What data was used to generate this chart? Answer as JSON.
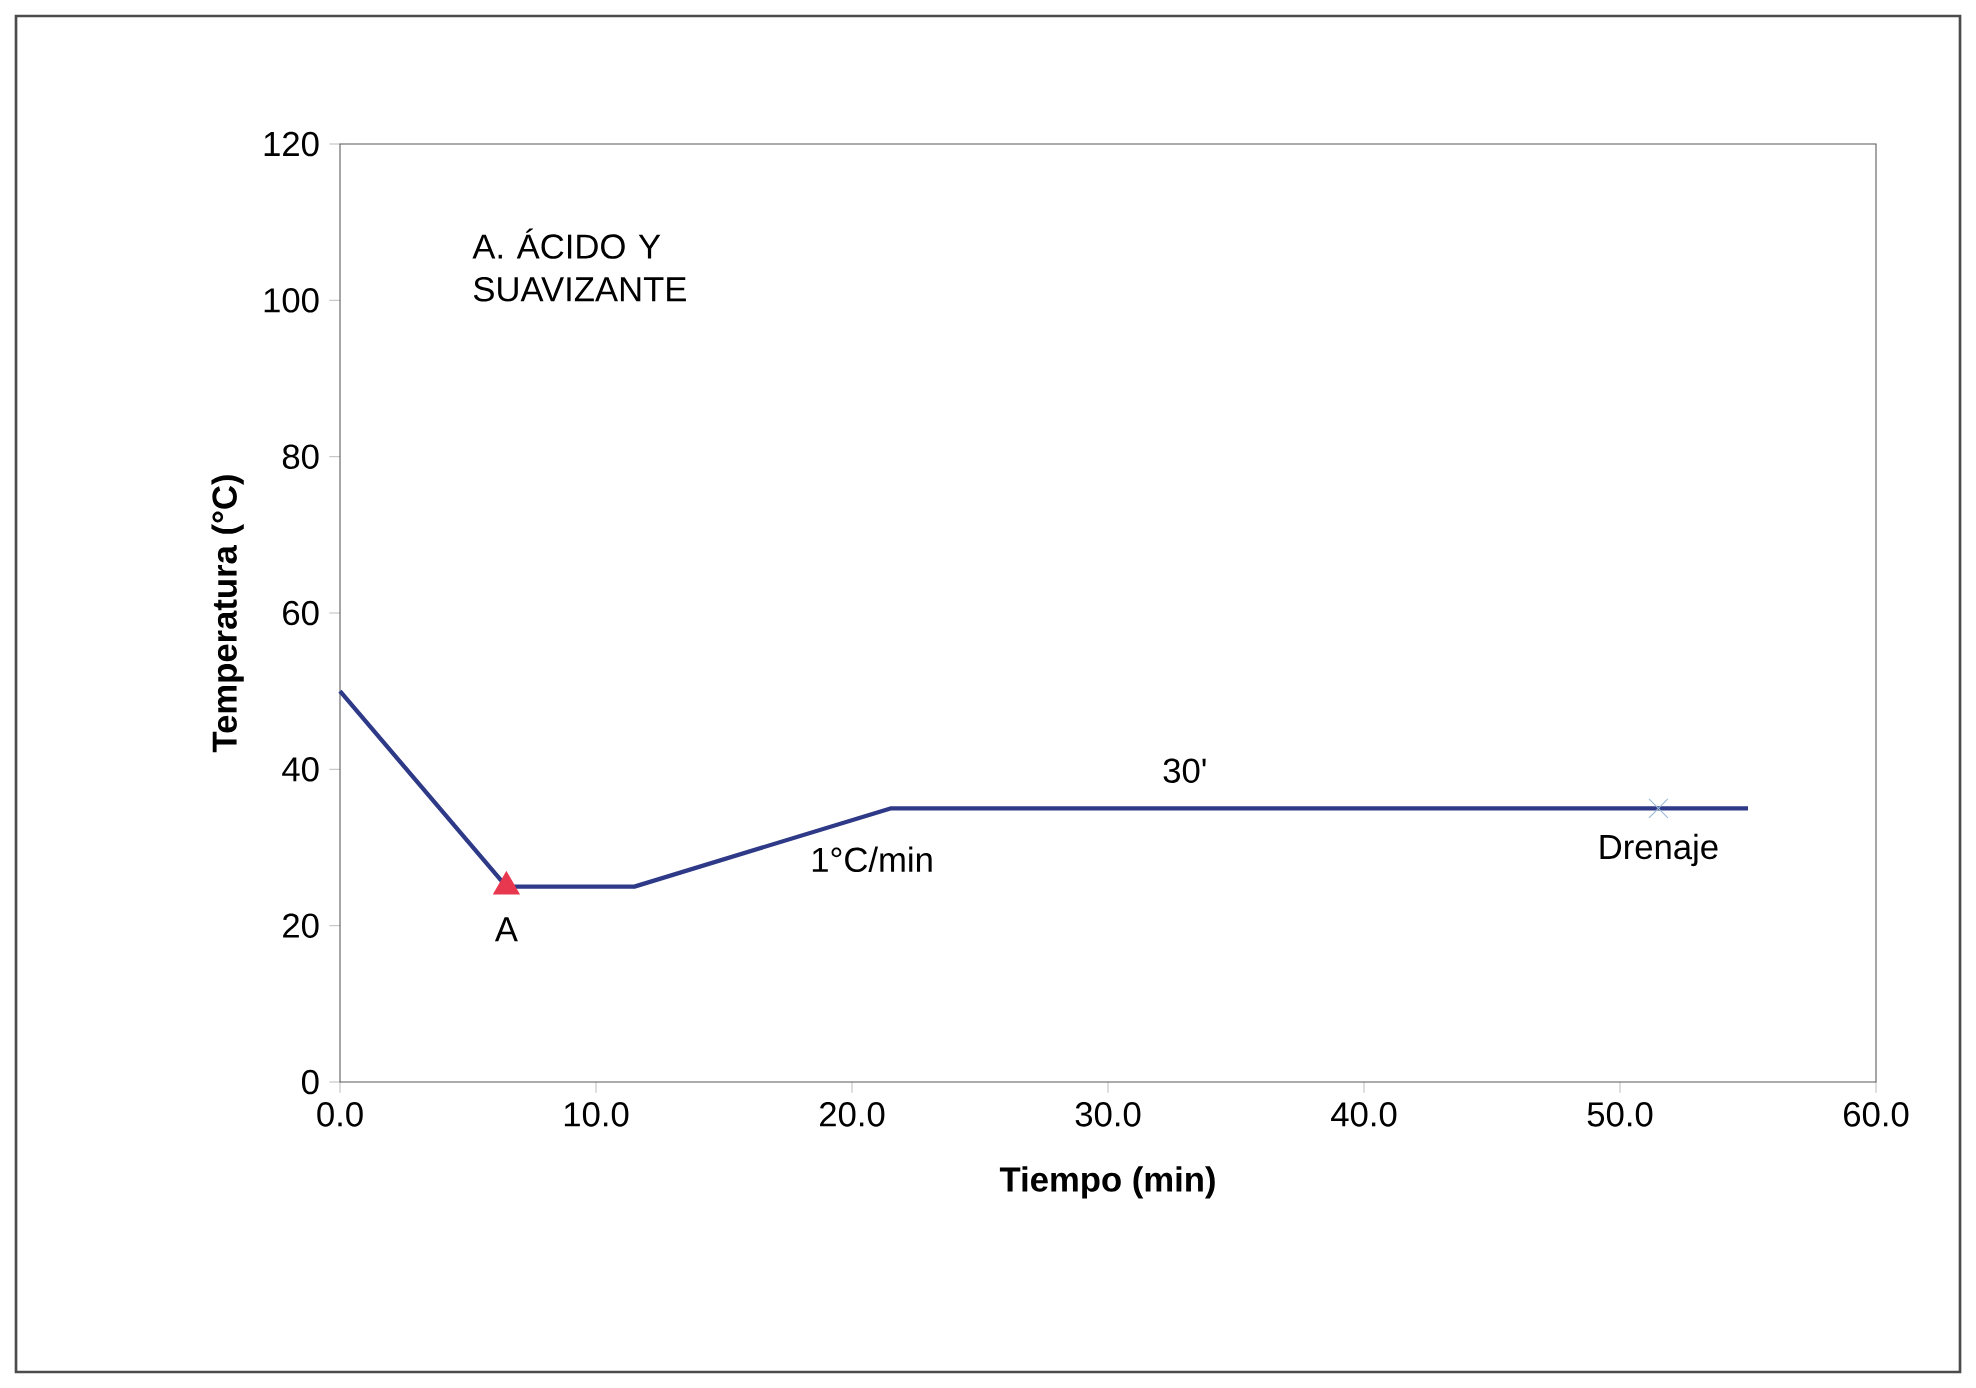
{
  "chart_data": {
    "type": "line",
    "xlabel": "Tiempo (min)",
    "ylabel": "Temperatura (°C)",
    "annotations": [
      "A. ÁCIDO Y SUAVIZANTE",
      {
        "text": "A",
        "x": 6.5,
        "y": 25
      },
      {
        "text": "1°C/min",
        "x": 18,
        "y": 32
      },
      {
        "text": "30'",
        "x": 33,
        "y": 35
      },
      {
        "text": "Drenaje",
        "x": 51.5,
        "y": 35
      }
    ],
    "series": [
      {
        "color": "#2e3a87",
        "marker": "none",
        "x": [
          0,
          6.5,
          11.5,
          21.5,
          55
        ],
        "values": [
          50,
          25,
          25,
          35,
          35
        ]
      },
      {
        "type": "scatter",
        "color": "#e8384f",
        "marker": "triangle",
        "x": [
          6.5
        ],
        "values": [
          25
        ]
      },
      {
        "type": "scatter",
        "color": "#9ab8d8",
        "marker": "cross",
        "x": [
          51.5
        ],
        "values": [
          35
        ]
      }
    ],
    "xlim": [
      0,
      60
    ],
    "ylim": [
      0,
      120
    ],
    "xticks": [
      {
        "value": 0,
        "label": "0.0"
      },
      {
        "value": 10,
        "label": "10.0"
      },
      {
        "value": 20,
        "label": "20.0"
      },
      {
        "value": 30,
        "label": "30.0"
      },
      {
        "value": 40,
        "label": "40.0"
      },
      {
        "value": 50,
        "label": "50.0"
      },
      {
        "value": 60,
        "label": "60.0"
      }
    ],
    "yticks": [
      0,
      20,
      40,
      60,
      80,
      100,
      120
    ],
    "grid": false,
    "line_style": "solid"
  }
}
